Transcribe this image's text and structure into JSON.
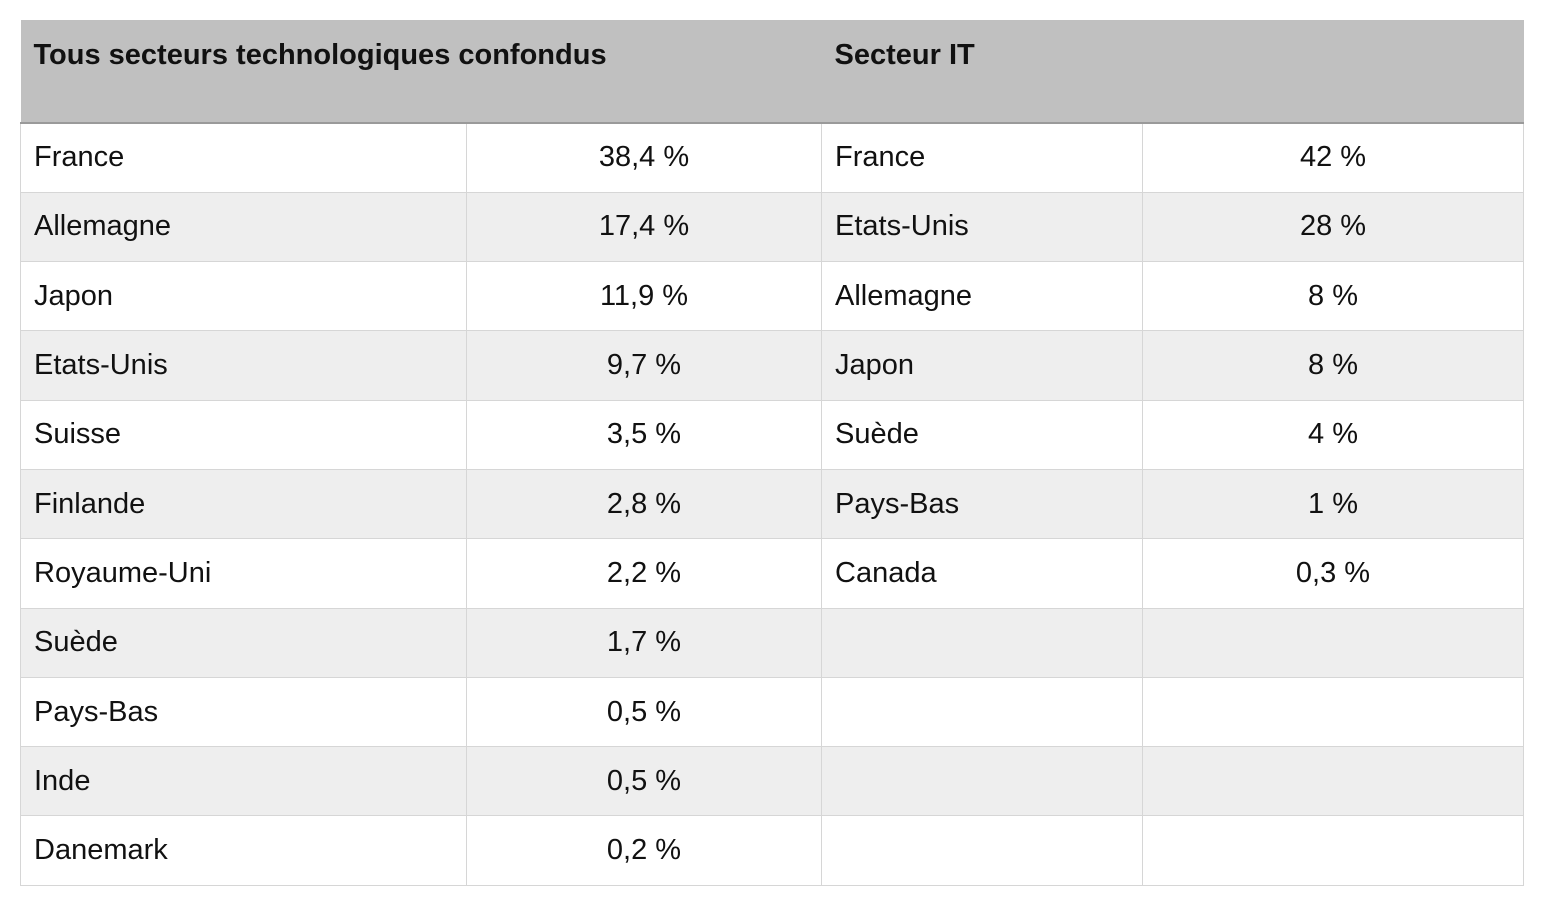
{
  "headers": {
    "all_sectors": "Tous secteurs technologiques confondus",
    "it_sector": "Secteur IT"
  },
  "rows": [
    {
      "country_all": "France",
      "value_all": "38,4 %",
      "country_it": "France",
      "value_it": "42 %"
    },
    {
      "country_all": "Allemagne",
      "value_all": "17,4 %",
      "country_it": "Etats-Unis",
      "value_it": "28 %"
    },
    {
      "country_all": "Japon",
      "value_all": "11,9 %",
      "country_it": "Allemagne",
      "value_it": "8 %"
    },
    {
      "country_all": "Etats-Unis",
      "value_all": "9,7 %",
      "country_it": "Japon",
      "value_it": "8 %"
    },
    {
      "country_all": "Suisse",
      "value_all": "3,5 %",
      "country_it": "Suède",
      "value_it": "4 %"
    },
    {
      "country_all": "Finlande",
      "value_all": "2,8 %",
      "country_it": "Pays-Bas",
      "value_it": "1 %"
    },
    {
      "country_all": "Royaume-Uni",
      "value_all": "2,2 %",
      "country_it": "Canada",
      "value_it": "0,3 %"
    },
    {
      "country_all": "Suède",
      "value_all": "1,7 %",
      "country_it": "",
      "value_it": ""
    },
    {
      "country_all": "Pays-Bas",
      "value_all": "0,5 %",
      "country_it": "",
      "value_it": ""
    },
    {
      "country_all": "Inde",
      "value_all": "0,5 %",
      "country_it": "",
      "value_it": ""
    },
    {
      "country_all": "Danemark",
      "value_all": "0,2 %",
      "country_it": "",
      "value_it": ""
    }
  ]
}
